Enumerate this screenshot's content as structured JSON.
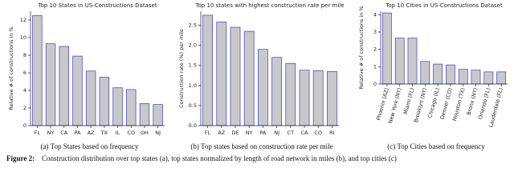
{
  "chart_data": [
    {
      "type": "bar",
      "title": "Top 10 States in US-Constructions Dataset",
      "y_label": "Relative # of constructions in %",
      "categories": [
        "FL",
        "NY",
        "CA",
        "PA",
        "AZ",
        "TX",
        "IL",
        "CO",
        "OH",
        "NJ"
      ],
      "values": [
        12.5,
        9.3,
        9.0,
        7.9,
        6.2,
        5.5,
        4.3,
        4.1,
        2.5,
        2.4
      ],
      "color": "#c8c8c8",
      "edge_color": "#3c3cd0",
      "ylim": [
        0,
        13
      ],
      "yticks": [
        0,
        2,
        4,
        6,
        8,
        10,
        12
      ],
      "caption": "(a) Top States based on frequency"
    },
    {
      "type": "bar",
      "title": "Top 10 states with highest construction rate per mile",
      "y_label": "Construction rate (%) per mile",
      "categories": [
        "FL",
        "AZ",
        "DE",
        "NY",
        "PA",
        "NJ",
        "CT",
        "CA",
        "CO",
        "RI"
      ],
      "values": [
        2.75,
        2.58,
        2.45,
        2.35,
        1.9,
        1.7,
        1.55,
        1.38,
        1.37,
        1.35
      ],
      "color": "#c8c8c8",
      "edge_color": "#3c3cd0",
      "ylim": [
        0,
        2.85
      ],
      "yticks": [
        {
          "value": 0,
          "label": "0.0"
        },
        {
          "value": 0.5,
          "label": "0.5"
        },
        {
          "value": 1,
          "label": "1.0"
        },
        {
          "value": 1.5,
          "label": "1.5"
        },
        {
          "value": 2,
          "label": "2.0"
        },
        {
          "value": 2.5,
          "label": "2.5"
        }
      ],
      "caption": "(b) Top states based on construction rate per mile"
    },
    {
      "type": "bar",
      "title": "Top 10 Cities in US-Constructions Dataset",
      "y_label": "Relative # of constructions in %",
      "categories": [
        "Phoenix (AZ)",
        "New York (NY)",
        "Miami (FL)",
        "Brooklyn (NY)",
        "Chicago (IL)",
        "Denver (CO)",
        "Houston (TX)",
        "Bronx (NY)",
        "Orlando (FL)",
        "Lauderdale (FL)"
      ],
      "values": [
        4.1,
        2.65,
        2.65,
        1.3,
        1.15,
        1.1,
        0.85,
        0.8,
        0.7,
        0.7
      ],
      "color": "#c8c8c8",
      "edge_color": "#3c3cd0",
      "ylim": [
        0,
        4.2
      ],
      "yticks": [
        0,
        1,
        2,
        3,
        4
      ],
      "rotated_labels": true,
      "caption": "(c) Top Cities based on frequency"
    }
  ],
  "figure_caption": {
    "label": "Figure 2:",
    "text": "Construction distribution over top states (a), top states normalized by length of road network in miles (b), and top cities (c)"
  }
}
